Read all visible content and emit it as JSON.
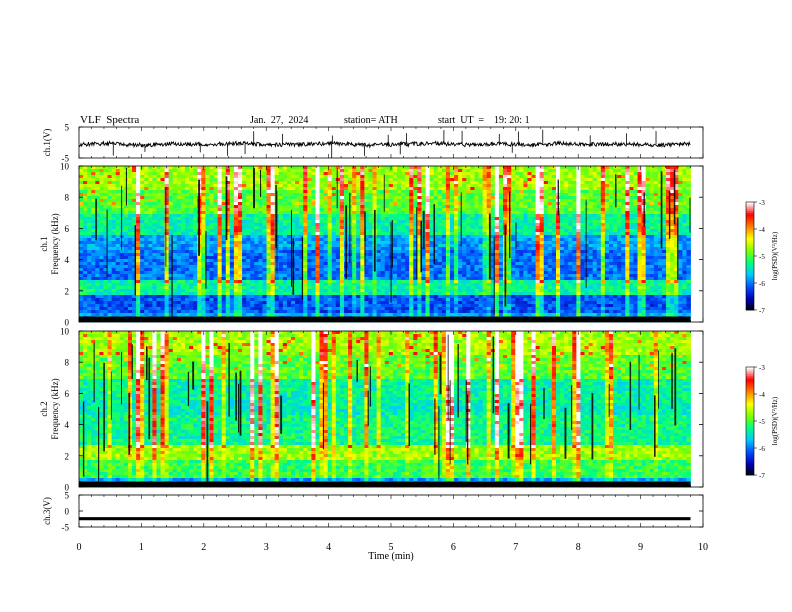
{
  "header": {
    "title": "VLF  Spectra",
    "date": "Jan.  27,  2024",
    "station": "station= ATH",
    "start": "start  UT  =    19: 20: 1"
  },
  "chart_data": [
    {
      "type": "line",
      "panel": "ch1-waveform",
      "ylabel": "ch.1(V)",
      "ylim": [
        -5,
        5
      ],
      "yticks": [
        "5",
        "-5"
      ],
      "xlim": [
        0,
        10
      ],
      "series": [
        {
          "values": [
            -0.6,
            -0.3,
            -0.9,
            -0.4,
            -0.7,
            -0.2,
            -0.8,
            -0.5,
            -0.3,
            -0.9,
            -0.6,
            -0.2,
            -0.7,
            -0.4,
            -0.8,
            -0.3,
            -0.6,
            -0.5,
            -0.9,
            -0.4
          ]
        }
      ],
      "line_color": "#000000"
    },
    {
      "type": "heatmap",
      "panel": "ch1-spectrogram",
      "ylabel": "ch.1\nFrequency (kHz)",
      "ylim": [
        0,
        10
      ],
      "yticks": [
        "0",
        "2",
        "4",
        "6",
        "8",
        "10"
      ],
      "xlim": [
        0,
        10
      ],
      "data_extent_min": 9.8,
      "colorbar": {
        "label": "log(PSD)(V²/Hz)",
        "range": [
          -7,
          -3
        ],
        "ticks": [
          "-3",
          "-4",
          "-5",
          "-6",
          "-7"
        ]
      }
    },
    {
      "type": "heatmap",
      "panel": "ch2-spectrogram",
      "ylabel": "ch.2\nFrequency (kHz)",
      "ylim": [
        0,
        10
      ],
      "yticks": [
        "0",
        "2",
        "4",
        "6",
        "8",
        "10"
      ],
      "xlim": [
        0,
        10
      ],
      "data_extent_min": 9.8,
      "colorbar": {
        "label": "log(PSD)(V²/Hz)",
        "range": [
          -7,
          -3
        ],
        "ticks": [
          "-3",
          "-4",
          "-5",
          "-6",
          "-7"
        ]
      }
    },
    {
      "type": "line",
      "panel": "ch3-waveform",
      "ylabel": "ch.3(V)",
      "ylim": [
        -5,
        5
      ],
      "yticks": [
        "5",
        "0",
        "-5"
      ],
      "xlim": [
        0,
        10
      ],
      "series": [
        {
          "values": [
            -2.4,
            -2.4,
            -2.4,
            -2.4,
            -2.4,
            -2.4,
            -2.4,
            -2.4,
            -2.4,
            -2.4
          ]
        }
      ],
      "line_color": "#000000"
    }
  ],
  "xaxis": {
    "label": "Time  (min)",
    "ticks": [
      "0",
      "1",
      "2",
      "3",
      "4",
      "5",
      "6",
      "7",
      "8",
      "9",
      "10"
    ],
    "range": [
      0,
      10
    ]
  },
  "colors": {
    "colormap": [
      "#000000",
      "#0000b4",
      "#0050ff",
      "#00c8ff",
      "#00ff80",
      "#80ff00",
      "#ffff00",
      "#ff8000",
      "#ff0000",
      "#ffffff"
    ]
  }
}
